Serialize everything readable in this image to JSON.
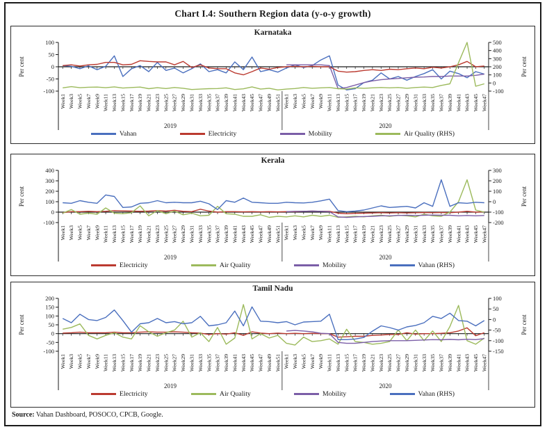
{
  "title": "Chart I.4: Southern Region data (y-o-y growth)",
  "source": {
    "label": "Source:",
    "text": " Vahan Dashboard, POSOCO, CPCB, Google."
  },
  "colors": {
    "vahan": "#4a6fbe",
    "electricity": "#bb3a30",
    "mobility": "#7b5ea7",
    "air_quality": "#9cba5c",
    "axis": "#1a1a1a"
  },
  "chart_data": {
    "type": "line",
    "x_groups": [
      {
        "year": "2019",
        "labels": [
          "Week1",
          "Week3",
          "Week5",
          "Week7",
          "Week9",
          "Week11",
          "Week13",
          "Week15",
          "Week17",
          "Week19",
          "Week21",
          "Week23",
          "Week25",
          "Week27",
          "Week29",
          "Week31",
          "Week33",
          "Week35",
          "Week37",
          "Week39",
          "Week41",
          "Week43",
          "Week45",
          "Week47",
          "Week49",
          "Week51"
        ]
      },
      {
        "year": "2020",
        "labels": [
          "Week1",
          "Week3",
          "Week5",
          "Week7",
          "Week9",
          "Week11",
          "Week13",
          "Week15",
          "Week17",
          "Week19",
          "Week21",
          "Week23",
          "Week25",
          "Week27",
          "Week29",
          "Week31",
          "Week33",
          "Week35",
          "Week37",
          "Week39",
          "Week41",
          "Week43",
          "Week45",
          "Week47"
        ]
      }
    ],
    "panels": [
      {
        "title": "Karnataka",
        "left_axis": {
          "label": "Per cent",
          "min": -100,
          "max": 100,
          "ticks": [
            100,
            50,
            0,
            -50,
            -100
          ]
        },
        "right_axis": {
          "label": "Per cent",
          "min": -100,
          "max": 500,
          "ticks": [
            500,
            400,
            300,
            200,
            100,
            0,
            -100
          ]
        },
        "series": [
          {
            "name": "Vahan",
            "axis": "left",
            "color": "#4a6fbe",
            "values_2019": [
              5,
              2,
              -8,
              4,
              -12,
              2,
              45,
              -40,
              -8,
              5,
              -20,
              18,
              -15,
              -5,
              -25,
              -8,
              12,
              -20,
              -12,
              -25,
              20,
              -12,
              40,
              -20,
              -12,
              -22
            ],
            "values_2020": [
              -5,
              8,
              -3,
              5,
              28,
              45,
              -75,
              -95,
              -90,
              -65,
              -55,
              -25,
              -50,
              -40,
              -55,
              -40,
              -28,
              -12,
              -50,
              -18,
              -28,
              -45,
              -20,
              -30
            ]
          },
          {
            "name": "Electricity",
            "axis": "left",
            "color": "#bb3a30",
            "values_2019": [
              5,
              8,
              3,
              8,
              10,
              18,
              18,
              8,
              10,
              25,
              22,
              20,
              20,
              8,
              22,
              -3,
              8,
              -5,
              -8,
              -8,
              -25,
              -33,
              -20,
              -5,
              -10,
              -3
            ],
            "values_2020": [
              0,
              2,
              0,
              2,
              0,
              0,
              -18,
              -22,
              -20,
              -15,
              -12,
              -15,
              -10,
              -12,
              -8,
              -5,
              -8,
              -2,
              -5,
              0,
              8,
              22,
              0,
              3
            ]
          },
          {
            "name": "Mobility",
            "axis": "left",
            "color": "#7b5ea7",
            "values_2019": null,
            "values_2020": [
              8,
              8,
              8,
              8,
              8,
              5,
              -90,
              -85,
              -75,
              -65,
              -58,
              -53,
              -50,
              -48,
              -45,
              -43,
              -42,
              -40,
              -40,
              -38,
              -38,
              -38,
              -35,
              -30
            ]
          },
          {
            "name": "Air Quality (RHS)",
            "axis": "right",
            "color": "#9cba5c",
            "values_2019": [
              -60,
              -45,
              -58,
              -52,
              -50,
              -58,
              -48,
              -62,
              -55,
              -50,
              -70,
              -58,
              -68,
              -55,
              -65,
              -80,
              -75,
              -70,
              -68,
              -60,
              -80,
              -72,
              -48,
              -75,
              -65,
              -85
            ],
            "values_2020": [
              -75,
              -68,
              -55,
              -65,
              -60,
              -55,
              -70,
              -75,
              -60,
              -65,
              -60,
              -55,
              -60,
              -55,
              -65,
              -55,
              -50,
              -55,
              -30,
              -10,
              250,
              500,
              -40,
              -10
            ]
          }
        ]
      },
      {
        "title": "Kerala",
        "left_axis": {
          "label": "Per cent",
          "min": -100,
          "max": 400,
          "ticks": [
            400,
            300,
            200,
            100,
            0,
            -100
          ]
        },
        "right_axis": {
          "label": "Per cent",
          "min": -200,
          "max": 300,
          "ticks": [
            300,
            200,
            100,
            0,
            -100,
            -200
          ]
        },
        "series": [
          {
            "name": "Electricity",
            "axis": "left",
            "color": "#bb3a30",
            "values_2019": [
              -5,
              5,
              5,
              8,
              5,
              8,
              15,
              12,
              10,
              8,
              10,
              15,
              10,
              18,
              8,
              5,
              28,
              10,
              0,
              5,
              5,
              3,
              5,
              3,
              5,
              3
            ],
            "values_2020": [
              5,
              5,
              8,
              10,
              8,
              8,
              -10,
              -15,
              -12,
              -10,
              -8,
              -5,
              -8,
              -5,
              -8,
              -5,
              -3,
              -5,
              -3,
              -5,
              0,
              8,
              0,
              3
            ]
          },
          {
            "name": "Air Quality",
            "axis": "left",
            "color": "#9cba5c",
            "values_2019": [
              -10,
              25,
              -20,
              -10,
              -20,
              40,
              -10,
              -15,
              -5,
              60,
              -35,
              15,
              -15,
              10,
              -25,
              -10,
              -35,
              -30,
              55,
              -15,
              -20,
              -40,
              -40,
              -25,
              -50,
              -40
            ],
            "values_2020": [
              -45,
              -35,
              -45,
              -30,
              -40,
              -30,
              -50,
              -45,
              -40,
              -45,
              -35,
              -30,
              -40,
              -30,
              -35,
              -45,
              -20,
              -35,
              -40,
              0,
              100,
              310,
              20,
              0
            ]
          },
          {
            "name": "Mobility",
            "axis": "left",
            "color": "#7b5ea7",
            "values_2019": null,
            "values_2020": [
              5,
              8,
              8,
              10,
              8,
              5,
              -45,
              -50,
              -45,
              -42,
              -40,
              -35,
              -35,
              -32,
              -30,
              -32,
              -30,
              -28,
              -30,
              -30,
              -35,
              -32,
              -35,
              -32
            ]
          },
          {
            "name": "Vahan (RHS)",
            "axis": "right",
            "color": "#4a6fbe",
            "values_2019": [
              -10,
              -15,
              10,
              -5,
              -15,
              65,
              50,
              -55,
              -50,
              -15,
              -10,
              10,
              -10,
              -5,
              -10,
              -10,
              5,
              -20,
              -75,
              10,
              -5,
              35,
              -5,
              -10,
              -15,
              -15
            ],
            "values_2020": [
              -5,
              -10,
              -12,
              -5,
              8,
              25,
              -85,
              -95,
              -90,
              -80,
              -60,
              -40,
              -55,
              -50,
              -45,
              -60,
              -10,
              -45,
              210,
              -45,
              -10,
              -15,
              -5,
              -10
            ]
          }
        ]
      },
      {
        "title": "Tamil Nadu",
        "left_axis": {
          "label": "Per cent",
          "min": -100,
          "max": 200,
          "ticks": [
            200,
            150,
            100,
            50,
            0,
            -50,
            -100
          ]
        },
        "right_axis": {
          "label": "Per cent",
          "min": -150,
          "max": 100,
          "ticks": [
            100,
            50,
            0,
            -50,
            -100,
            -150
          ]
        },
        "series": [
          {
            "name": "Electricity",
            "axis": "left",
            "color": "#bb3a30",
            "values_2019": [
              3,
              5,
              8,
              5,
              5,
              5,
              8,
              5,
              5,
              8,
              10,
              8,
              8,
              10,
              8,
              5,
              3,
              -5,
              0,
              -3,
              5,
              -10,
              10,
              3,
              0,
              3
            ],
            "values_2020": [
              0,
              2,
              0,
              2,
              0,
              0,
              -20,
              -18,
              -15,
              -15,
              -10,
              -8,
              -5,
              -5,
              5,
              -3,
              0,
              0,
              2,
              5,
              15,
              33,
              -12,
              5
            ]
          },
          {
            "name": "Air Quality",
            "axis": "left",
            "color": "#9cba5c",
            "values_2019": [
              25,
              35,
              55,
              -10,
              -30,
              -10,
              5,
              -20,
              -30,
              45,
              10,
              -15,
              5,
              20,
              70,
              -20,
              5,
              -45,
              35,
              -60,
              -25,
              165,
              -30,
              0,
              -25,
              -10
            ],
            "values_2020": [
              -55,
              -65,
              -20,
              -45,
              -40,
              -30,
              -60,
              25,
              -45,
              -50,
              -60,
              -55,
              -45,
              20,
              -40,
              20,
              -40,
              15,
              -45,
              40,
              160,
              -40,
              -60,
              -25
            ]
          },
          {
            "name": "Mobility",
            "axis": "left",
            "color": "#7b5ea7",
            "values_2019": null,
            "values_2020": [
              15,
              18,
              15,
              10,
              2,
              0,
              -50,
              -55,
              -55,
              -50,
              -45,
              -42,
              -40,
              -40,
              -40,
              -38,
              -36,
              -34,
              -35,
              -33,
              -35,
              -32,
              -34,
              -28
            ]
          },
          {
            "name": "Vahan (RHS)",
            "axis": "right",
            "color": "#4a6fbe",
            "values_2019": [
              5,
              -15,
              25,
              0,
              -5,
              10,
              45,
              -5,
              -60,
              -20,
              -15,
              5,
              -15,
              -10,
              -20,
              -15,
              15,
              -30,
              -25,
              -15,
              40,
              -30,
              60,
              -8,
              -10,
              -15
            ],
            "values_2020": [
              -10,
              -25,
              -12,
              -10,
              -8,
              25,
              -95,
              -95,
              -92,
              -85,
              -55,
              -30,
              -38,
              -50,
              -35,
              -28,
              -15,
              15,
              5,
              30,
              -5,
              -8,
              -30,
              -5
            ]
          }
        ]
      }
    ]
  }
}
